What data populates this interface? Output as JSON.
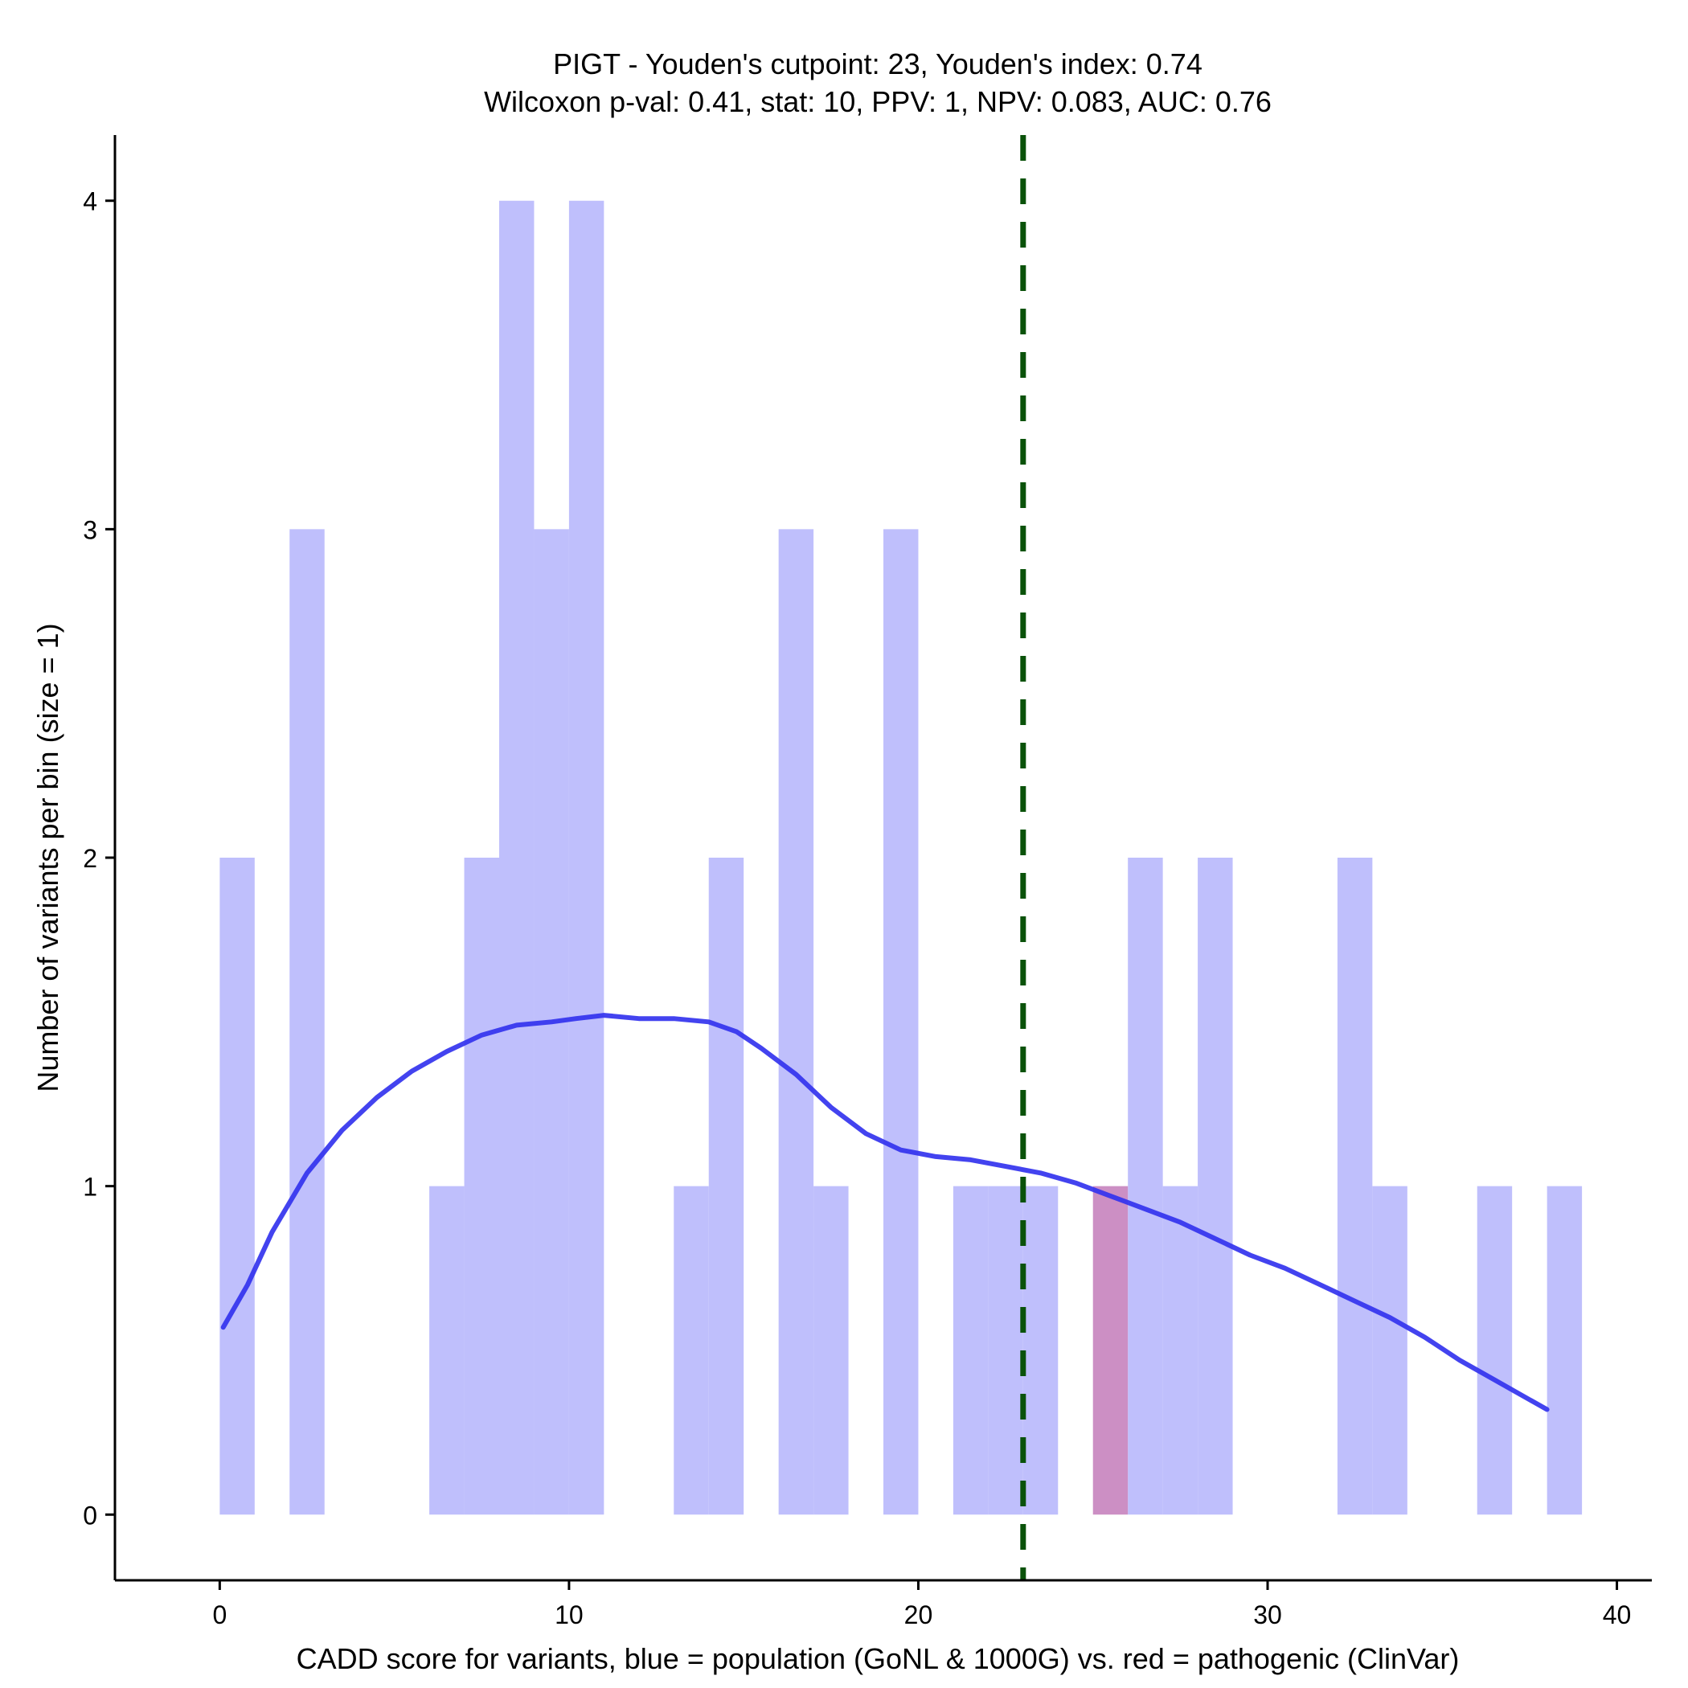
{
  "chart_data": {
    "type": "bar",
    "title_line1": "PIGT - Youden's cutpoint: 23, Youden's index: 0.74",
    "title_line2": "Wilcoxon p-val: 0.41, stat: 10, PPV: 1, NPV: 0.083, AUC: 0.76",
    "xlabel": "CADD score for variants, blue = population (GoNL & 1000G) vs. red = pathogenic (ClinVar)",
    "ylabel": "Number of variants per bin (size = 1)",
    "xlim": [
      -3,
      41
    ],
    "ylim": [
      -0.2,
      4.2
    ],
    "x_ticks": [
      0,
      10,
      20,
      30,
      40
    ],
    "y_ticks": [
      0,
      1,
      2,
      3,
      4
    ],
    "bin_size": 1,
    "cutpoint": 23,
    "colors": {
      "population": "#bfbffc",
      "pathogenic": "#cc8fc4",
      "density": "#3333ee",
      "cutpoint": "#0a520a"
    },
    "series": [
      {
        "name": "population (GoNL & 1000G)",
        "bins": [
          {
            "x0": 0,
            "count": 2
          },
          {
            "x0": 2,
            "count": 3
          },
          {
            "x0": 6,
            "count": 1
          },
          {
            "x0": 7,
            "count": 2
          },
          {
            "x0": 8,
            "count": 4
          },
          {
            "x0": 9,
            "count": 3
          },
          {
            "x0": 10,
            "count": 4
          },
          {
            "x0": 13,
            "count": 1
          },
          {
            "x0": 14,
            "count": 2
          },
          {
            "x0": 16,
            "count": 3
          },
          {
            "x0": 17,
            "count": 1
          },
          {
            "x0": 19,
            "count": 3
          },
          {
            "x0": 21,
            "count": 1
          },
          {
            "x0": 22,
            "count": 1
          },
          {
            "x0": 23,
            "count": 1
          },
          {
            "x0": 26,
            "count": 2
          },
          {
            "x0": 27,
            "count": 1
          },
          {
            "x0": 28,
            "count": 2
          },
          {
            "x0": 32,
            "count": 2
          },
          {
            "x0": 33,
            "count": 1
          },
          {
            "x0": 36,
            "count": 1
          },
          {
            "x0": 38,
            "count": 1
          }
        ]
      },
      {
        "name": "pathogenic (ClinVar)",
        "bins": [
          {
            "x0": 25,
            "count": 1
          }
        ]
      }
    ],
    "density_curve": {
      "x": [
        0.1,
        0.8,
        1.5,
        2.5,
        3.5,
        4.5,
        5.5,
        6.5,
        7.5,
        8.5,
        9.5,
        10.2,
        11,
        12,
        13,
        14,
        14.8,
        15.5,
        16.5,
        17.5,
        18.5,
        19.5,
        20.5,
        21.5,
        22.5,
        23.5,
        24.5,
        25.5,
        26.5,
        27.5,
        28.5,
        29.5,
        30.5,
        31.5,
        32.5,
        33.5,
        34.5,
        35.5,
        36.5,
        37.5,
        38
      ],
      "y": [
        0.57,
        0.7,
        0.86,
        1.04,
        1.17,
        1.27,
        1.35,
        1.41,
        1.46,
        1.49,
        1.5,
        1.51,
        1.52,
        1.51,
        1.51,
        1.5,
        1.47,
        1.42,
        1.34,
        1.24,
        1.16,
        1.11,
        1.09,
        1.08,
        1.06,
        1.04,
        1.01,
        0.97,
        0.93,
        0.89,
        0.84,
        0.79,
        0.75,
        0.7,
        0.65,
        0.6,
        0.54,
        0.47,
        0.41,
        0.35,
        0.32
      ]
    }
  }
}
